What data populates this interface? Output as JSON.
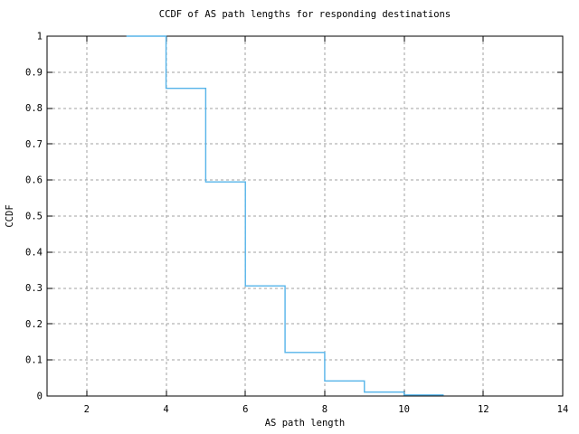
{
  "chart_data": {
    "type": "line",
    "subtype": "steps-post",
    "title": "CCDF of AS path lengths for responding destinations",
    "xlabel": "AS path length",
    "ylabel": "CCDF",
    "xlim": [
      1,
      14
    ],
    "ylim": [
      0,
      1
    ],
    "xticks": [
      2,
      4,
      6,
      8,
      10,
      12,
      14
    ],
    "xtick_labels": [
      "2",
      "4",
      "6",
      "8",
      "10",
      "12",
      "14"
    ],
    "yticks": [
      0,
      0.1,
      0.2,
      0.3,
      0.4,
      0.5,
      0.6,
      0.7,
      0.8,
      0.9,
      1
    ],
    "ytick_labels": [
      "0",
      "0.1",
      "0.2",
      "0.3",
      "0.4",
      "0.5",
      "0.6",
      "0.7",
      "0.8",
      "0.9",
      "1"
    ],
    "grid": true,
    "legend": "none",
    "series": [
      {
        "name": "ccdf-of-as-path-length",
        "color": "#56b4e9",
        "points": [
          {
            "x": 3,
            "y": 1.0
          },
          {
            "x": 4,
            "y": 0.855
          },
          {
            "x": 5,
            "y": 0.595
          },
          {
            "x": 6,
            "y": 0.306
          },
          {
            "x": 7,
            "y": 0.121
          },
          {
            "x": 8,
            "y": 0.042
          },
          {
            "x": 9,
            "y": 0.011
          },
          {
            "x": 10,
            "y": 0.003
          },
          {
            "x": 11,
            "y": 0.003
          }
        ]
      }
    ],
    "colors": {
      "background": "#ffffff",
      "axis": "#000000",
      "grid": "#a0a0a0",
      "line": "#56b4e9",
      "text": "#000000"
    }
  }
}
